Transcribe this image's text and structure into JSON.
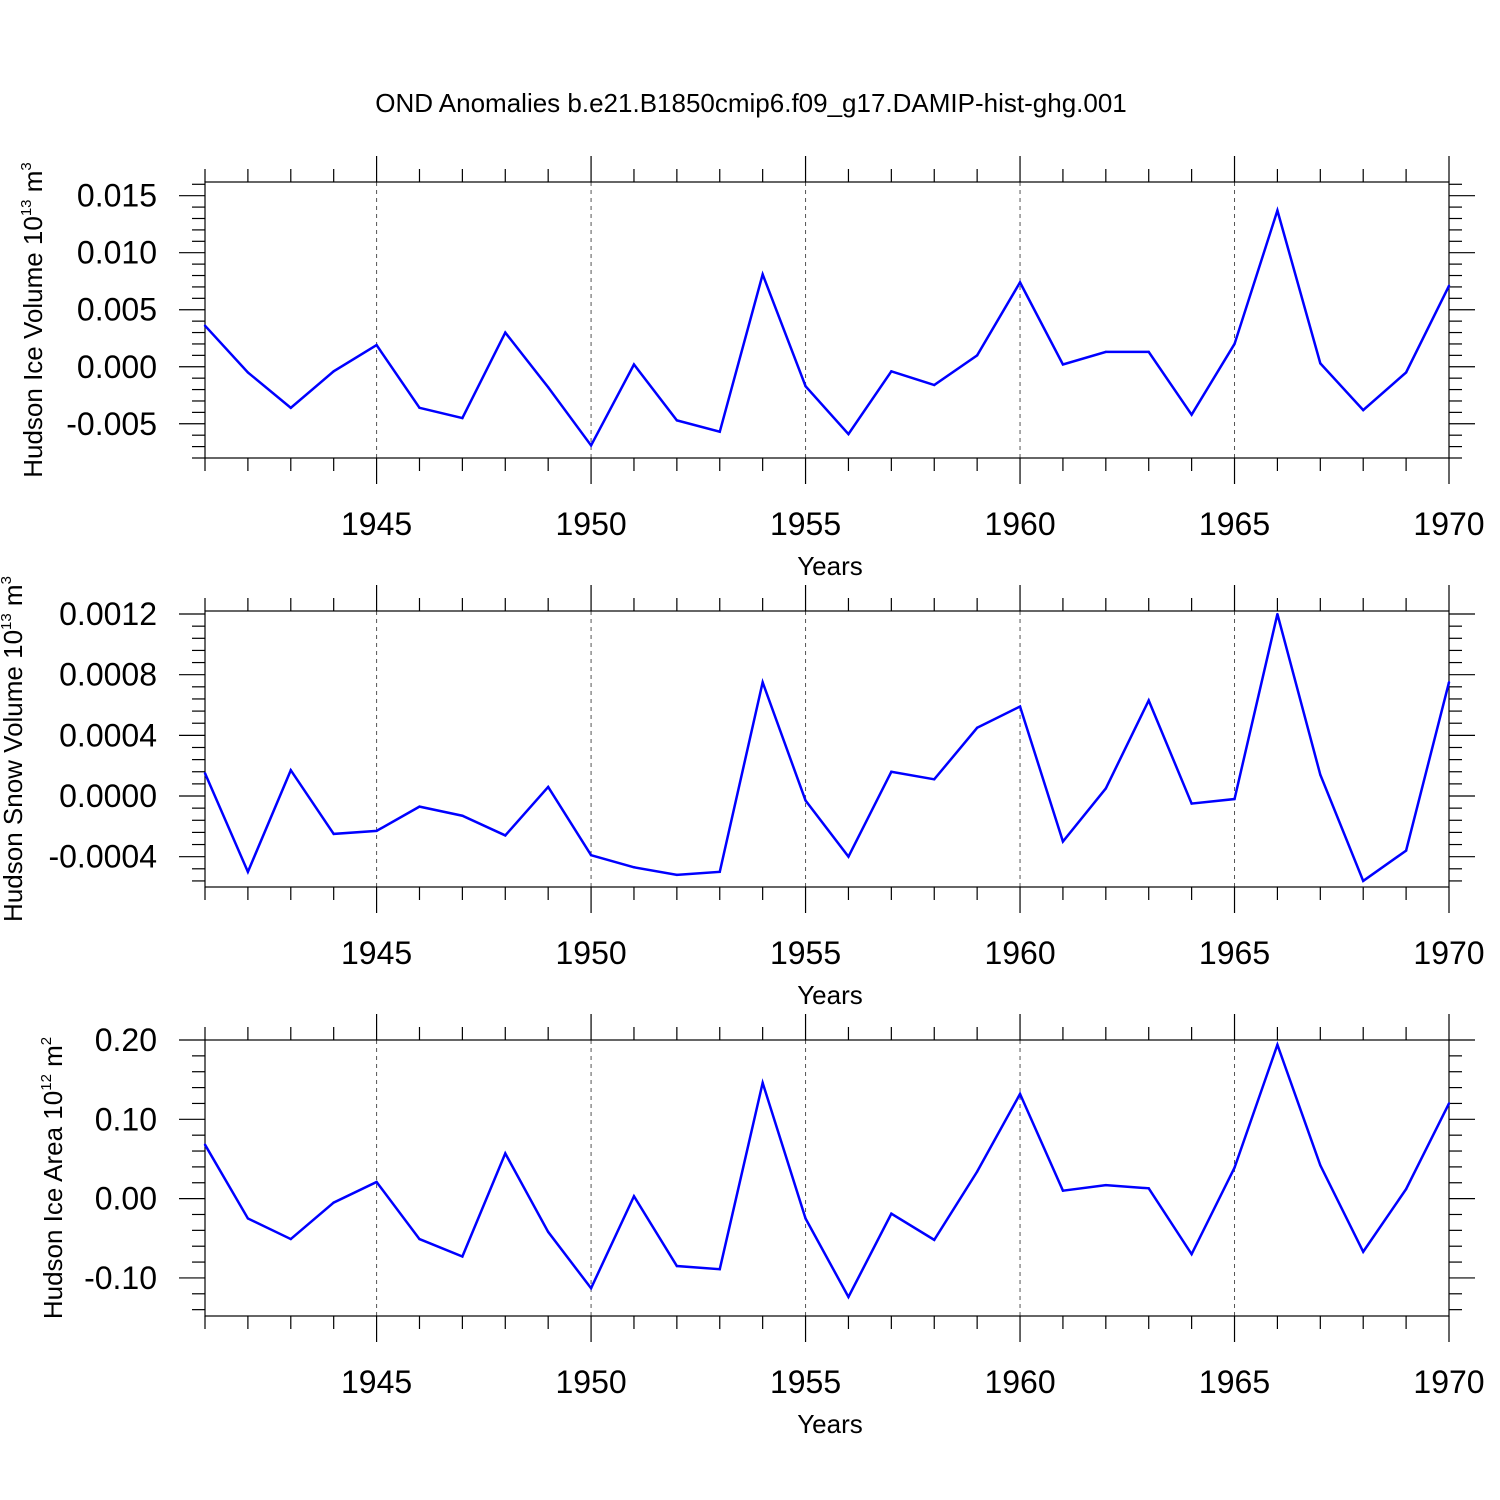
{
  "title": "OND Anomalies b.e21.B1850cmip6.f09_g17.DAMIP-hist-ghg.001",
  "chart_data": [
    {
      "type": "line",
      "ylabel": {
        "main": "Hudson Ice Volume 10",
        "exp": "13",
        "unit": " m",
        "unit_exp": "3"
      },
      "xlabel": "Years",
      "xlim": [
        1941,
        1970
      ],
      "ylim": [
        -0.008,
        0.0162
      ],
      "yticks": [
        -0.005,
        0.0,
        0.005,
        0.01,
        0.015
      ],
      "ytick_labels": [
        "-0.005",
        "0.000",
        "0.005",
        "0.010",
        "0.015"
      ],
      "xticks": [
        1945,
        1950,
        1955,
        1960,
        1965,
        1970
      ],
      "xtick_labels": [
        "1945",
        "1950",
        "1955",
        "1960",
        "1965",
        "1970"
      ],
      "grid_x": "dashed at labeled years",
      "color": "#0000ff",
      "x": [
        1941,
        1942,
        1943,
        1944,
        1945,
        1946,
        1947,
        1948,
        1949,
        1950,
        1951,
        1952,
        1953,
        1954,
        1955,
        1956,
        1957,
        1958,
        1959,
        1960,
        1961,
        1962,
        1963,
        1964,
        1965,
        1966,
        1967,
        1968,
        1969,
        1970
      ],
      "values": [
        0.0036,
        -0.0005,
        -0.0036,
        -0.0004,
        0.0019,
        -0.0036,
        -0.0045,
        0.003,
        -0.0018,
        -0.0069,
        0.0002,
        -0.0047,
        -0.0057,
        0.0081,
        -0.0017,
        -0.0059,
        -0.0004,
        -0.0016,
        0.001,
        0.0074,
        0.0002,
        0.0013,
        0.0013,
        -0.0042,
        0.002,
        0.0137,
        0.0003,
        -0.0038,
        -0.0005,
        0.0071
      ]
    },
    {
      "type": "line",
      "ylabel": {
        "main": "Hudson Snow Volume 10",
        "exp": "13",
        "unit": " m",
        "unit_exp": "3"
      },
      "xlabel": "Years",
      "xlim": [
        1941,
        1970
      ],
      "ylim": [
        -0.0006,
        0.00122
      ],
      "yticks": [
        -0.0004,
        0.0,
        0.0004,
        0.0008,
        0.0012
      ],
      "ytick_labels": [
        "-0.0004",
        "0.0000",
        "0.0004",
        "0.0008",
        "0.0012"
      ],
      "xticks": [
        1945,
        1950,
        1955,
        1960,
        1965,
        1970
      ],
      "xtick_labels": [
        "1945",
        "1950",
        "1955",
        "1960",
        "1965",
        "1970"
      ],
      "grid_x": "dashed at labeled years",
      "color": "#0000ff",
      "x": [
        1941,
        1942,
        1943,
        1944,
        1945,
        1946,
        1947,
        1948,
        1949,
        1950,
        1951,
        1952,
        1953,
        1954,
        1955,
        1956,
        1957,
        1958,
        1959,
        1960,
        1961,
        1962,
        1963,
        1964,
        1965,
        1966,
        1967,
        1968,
        1969,
        1970
      ],
      "values": [
        0.00015,
        -0.0005,
        0.00017,
        -0.00025,
        -0.00023,
        -7e-05,
        -0.00013,
        -0.00026,
        6e-05,
        -0.00039,
        -0.00047,
        -0.00052,
        -0.0005,
        0.00075,
        -3e-05,
        -0.0004,
        0.00016,
        0.00011,
        0.00045,
        0.00059,
        -0.0003,
        5e-05,
        0.00063,
        -5e-05,
        -2e-05,
        0.0012,
        0.00014,
        -0.00056,
        -0.00036,
        0.00075
      ]
    },
    {
      "type": "line",
      "ylabel": {
        "main": "Hudson Ice Area 10",
        "exp": "12",
        "unit": " m",
        "unit_exp": "2"
      },
      "xlabel": "Years",
      "xlim": [
        1941,
        1970
      ],
      "ylim": [
        -0.148,
        0.2
      ],
      "yticks": [
        -0.1,
        0.0,
        0.1,
        0.2
      ],
      "ytick_labels": [
        "-0.10",
        "0.00",
        "0.10",
        "0.20"
      ],
      "xticks": [
        1945,
        1950,
        1955,
        1960,
        1965,
        1970
      ],
      "xtick_labels": [
        "1945",
        "1950",
        "1955",
        "1960",
        "1965",
        "1970"
      ],
      "grid_x": "dashed at labeled years",
      "color": "#0000ff",
      "x": [
        1941,
        1942,
        1943,
        1944,
        1945,
        1946,
        1947,
        1948,
        1949,
        1950,
        1951,
        1952,
        1953,
        1954,
        1955,
        1956,
        1957,
        1958,
        1959,
        1960,
        1961,
        1962,
        1963,
        1964,
        1965,
        1966,
        1967,
        1968,
        1969,
        1970
      ],
      "values": [
        0.068,
        -0.025,
        -0.051,
        -0.005,
        0.021,
        -0.051,
        -0.073,
        0.057,
        -0.042,
        -0.113,
        0.003,
        -0.085,
        -0.089,
        0.146,
        -0.025,
        -0.124,
        -0.019,
        -0.052,
        0.034,
        0.132,
        0.01,
        0.017,
        0.013,
        -0.07,
        0.039,
        0.194,
        0.042,
        -0.067,
        0.012,
        0.12
      ]
    }
  ]
}
